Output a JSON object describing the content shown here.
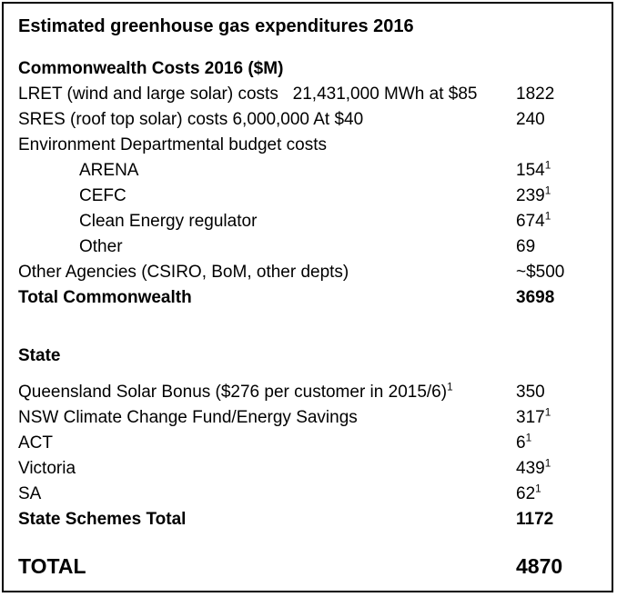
{
  "title": "Estimated greenhouse gas expenditures 2016",
  "colors": {
    "text": "#000000",
    "border": "#000000",
    "background": "#ffffff"
  },
  "table": {
    "rows": [
      {
        "type": "heading",
        "label": "Commonwealth Costs 2016 ($M)"
      },
      {
        "type": "item",
        "label": "LRET (wind and large solar) costs   21,431,000 MWh at $85",
        "value": "1822"
      },
      {
        "type": "item",
        "label": "SRES (roof top solar) costs 6,000,000 At $40",
        "value": "240"
      },
      {
        "type": "item",
        "label": "Environment Departmental budget costs",
        "value": ""
      },
      {
        "type": "item",
        "indent": true,
        "label": "ARENA",
        "value": "154",
        "value_sup": "1"
      },
      {
        "type": "item",
        "indent": true,
        "label": "CEFC",
        "value": "239",
        "value_sup": "1"
      },
      {
        "type": "item",
        "indent": true,
        "label": "Clean Energy regulator",
        "value": "674",
        "value_sup": "1"
      },
      {
        "type": "item",
        "indent": true,
        "label": "Other",
        "value": "69"
      },
      {
        "type": "item",
        "label": "Other Agencies (CSIRO, BoM, other depts)",
        "value": "~$500"
      },
      {
        "type": "total",
        "label": "Total Commonwealth",
        "value": "3698"
      },
      {
        "type": "spacer",
        "height": 36
      },
      {
        "type": "heading",
        "label": "State"
      },
      {
        "type": "spacer",
        "height": 12
      },
      {
        "type": "item",
        "label": "Queensland Solar Bonus ($276 per customer in 2015/6)",
        "label_sup": "1",
        "value": "350"
      },
      {
        "type": "item",
        "label": "NSW Climate Change Fund/Energy Savings",
        "value": "317",
        "value_sup": "1"
      },
      {
        "type": "item",
        "label": "ACT",
        "value": "6",
        "value_sup": "1"
      },
      {
        "type": "item",
        "label": "Victoria",
        "value": "439",
        "value_sup": "1"
      },
      {
        "type": "item",
        "label": "SA",
        "value": "62",
        "value_sup": "1"
      },
      {
        "type": "total",
        "label": "State Schemes Total",
        "value": "1172"
      },
      {
        "type": "spacer",
        "height": 20
      },
      {
        "type": "total",
        "large": true,
        "label": "TOTAL",
        "value": "4870"
      }
    ]
  }
}
